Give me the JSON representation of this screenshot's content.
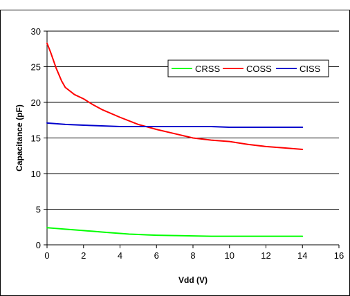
{
  "chart_data": {
    "type": "line",
    "title": "",
    "xlabel": "Vdd (V)",
    "ylabel": "Capacitance (pF)",
    "xlim": [
      0,
      16
    ],
    "ylim": [
      0,
      30
    ],
    "xticks": [
      "0",
      "2",
      "4",
      "6",
      "8",
      "10",
      "12",
      "14",
      "16"
    ],
    "yticks": [
      "0",
      "5",
      "10",
      "15",
      "20",
      "25",
      "30"
    ],
    "grid": "horizontal major gridlines",
    "legend_position": "top-right",
    "series": [
      {
        "name": "CRSS",
        "color": "#00ff00",
        "x": [
          0,
          0.5,
          1,
          1.5,
          2,
          2.5,
          3,
          3.5,
          4,
          4.5,
          5,
          5.5,
          6,
          7,
          8,
          9,
          10,
          11,
          12,
          13,
          14
        ],
        "y": [
          2.4,
          2.3,
          2.2,
          2.1,
          2.0,
          1.9,
          1.8,
          1.7,
          1.6,
          1.5,
          1.45,
          1.4,
          1.35,
          1.3,
          1.25,
          1.2,
          1.2,
          1.2,
          1.2,
          1.2,
          1.2
        ]
      },
      {
        "name": "COSS",
        "color": "#ff0000",
        "x": [
          0,
          0.2,
          0.5,
          0.8,
          1,
          1.5,
          2,
          2.5,
          3,
          4,
          5,
          6,
          7,
          8,
          9,
          10,
          11,
          12,
          13,
          14
        ],
        "y": [
          28.3,
          27.0,
          24.8,
          23.0,
          22.1,
          21.1,
          20.5,
          19.7,
          19.0,
          17.9,
          16.9,
          16.2,
          15.6,
          15.0,
          14.7,
          14.5,
          14.1,
          13.8,
          13.6,
          13.4
        ]
      },
      {
        "name": "CISS",
        "color": "#0000cc",
        "x": [
          0,
          1,
          2,
          3,
          4,
          5,
          6,
          7,
          8,
          9,
          10,
          11,
          12,
          13,
          14
        ],
        "y": [
          17.1,
          16.9,
          16.8,
          16.7,
          16.6,
          16.6,
          16.6,
          16.6,
          16.6,
          16.6,
          16.5,
          16.5,
          16.5,
          16.5,
          16.5
        ]
      }
    ]
  }
}
